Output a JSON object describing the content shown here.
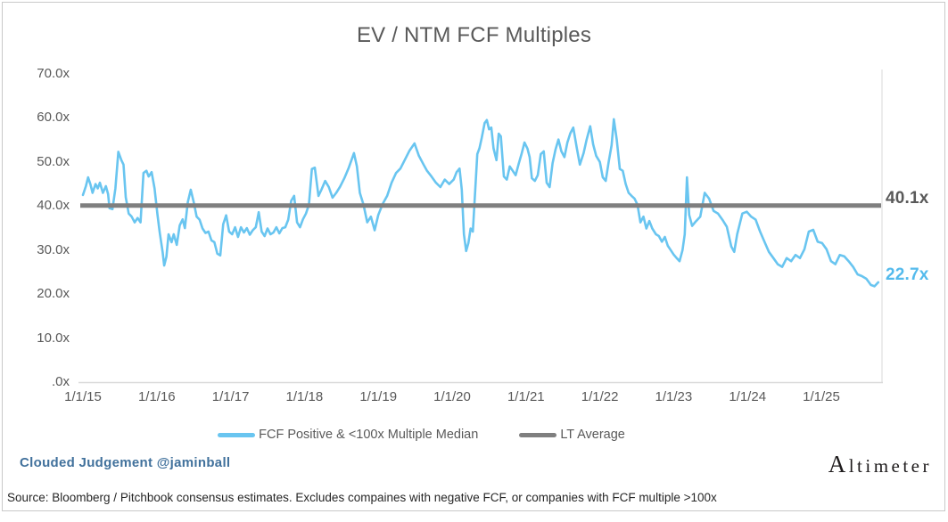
{
  "card": {
    "brand_line": "Clouded Judgement @jaminball",
    "logo_text": "Altimeter",
    "source_note": "Source: Bloomberg / Pitchbook consensus estimates. Excludes compaines with negative FCF, or companies with FCF multiple >100x"
  },
  "chart_data": {
    "type": "line",
    "title": "EV / NTM FCF Multiples",
    "grid": "off",
    "legend_position": "bottom",
    "ylim": [
      0,
      70
    ],
    "x_domain_years": [
      2015.0,
      2025.83
    ],
    "y_tick_labels": [
      ".0x",
      "10.0x",
      "20.0x",
      "30.0x",
      "40.0x",
      "50.0x",
      "60.0x",
      "70.0x"
    ],
    "x_tick_labels": [
      "1/1/15",
      "1/1/16",
      "1/1/17",
      "1/1/18",
      "1/1/19",
      "1/1/20",
      "1/1/21",
      "1/1/22",
      "1/1/23",
      "1/1/24",
      "1/1/25"
    ],
    "series": [
      {
        "name": "FCF Positive & <100x Multiple Median",
        "type": "line",
        "color": "#69c5f0",
        "points": [
          [
            2015.0,
            42.5
          ],
          [
            2015.04,
            44.5
          ],
          [
            2015.07,
            46.5
          ],
          [
            2015.1,
            45.0
          ],
          [
            2015.13,
            43.0
          ],
          [
            2015.17,
            45.0
          ],
          [
            2015.2,
            44.0
          ],
          [
            2015.23,
            45.3
          ],
          [
            2015.27,
            43.0
          ],
          [
            2015.31,
            44.5
          ],
          [
            2015.34,
            42.7
          ],
          [
            2015.36,
            39.5
          ],
          [
            2015.4,
            39.3
          ],
          [
            2015.44,
            44.0
          ],
          [
            2015.48,
            52.3
          ],
          [
            2015.52,
            50.4
          ],
          [
            2015.55,
            49.4
          ],
          [
            2015.58,
            42.0
          ],
          [
            2015.62,
            38.3
          ],
          [
            2015.66,
            37.6
          ],
          [
            2015.7,
            36.3
          ],
          [
            2015.74,
            37.3
          ],
          [
            2015.78,
            36.3
          ],
          [
            2015.82,
            47.5
          ],
          [
            2015.86,
            48.0
          ],
          [
            2015.89,
            46.7
          ],
          [
            2015.93,
            47.7
          ],
          [
            2015.97,
            44.0
          ],
          [
            2016.01,
            38.0
          ],
          [
            2016.04,
            34.0
          ],
          [
            2016.08,
            29.5
          ],
          [
            2016.1,
            26.5
          ],
          [
            2016.13,
            28.5
          ],
          [
            2016.16,
            33.6
          ],
          [
            2016.2,
            31.8
          ],
          [
            2016.23,
            33.6
          ],
          [
            2016.27,
            31.2
          ],
          [
            2016.31,
            35.6
          ],
          [
            2016.35,
            37.0
          ],
          [
            2016.38,
            35.0
          ],
          [
            2016.42,
            40.9
          ],
          [
            2016.46,
            43.7
          ],
          [
            2016.5,
            40.9
          ],
          [
            2016.54,
            37.6
          ],
          [
            2016.58,
            36.9
          ],
          [
            2016.62,
            34.9
          ],
          [
            2016.66,
            33.9
          ],
          [
            2016.7,
            34.2
          ],
          [
            2016.74,
            32.2
          ],
          [
            2016.78,
            31.8
          ],
          [
            2016.82,
            29.2
          ],
          [
            2016.86,
            28.8
          ],
          [
            2016.9,
            35.9
          ],
          [
            2016.94,
            37.9
          ],
          [
            2016.98,
            34.2
          ],
          [
            2017.02,
            33.6
          ],
          [
            2017.06,
            35.2
          ],
          [
            2017.1,
            33.0
          ],
          [
            2017.14,
            35.2
          ],
          [
            2017.18,
            34.0
          ],
          [
            2017.22,
            35.0
          ],
          [
            2017.26,
            33.5
          ],
          [
            2017.3,
            34.5
          ],
          [
            2017.34,
            35.2
          ],
          [
            2017.38,
            38.6
          ],
          [
            2017.42,
            34.2
          ],
          [
            2017.46,
            33.2
          ],
          [
            2017.5,
            34.9
          ],
          [
            2017.54,
            33.6
          ],
          [
            2017.58,
            34.0
          ],
          [
            2017.62,
            35.2
          ],
          [
            2017.66,
            33.8
          ],
          [
            2017.7,
            35.0
          ],
          [
            2017.74,
            35.2
          ],
          [
            2017.78,
            36.9
          ],
          [
            2017.82,
            41.2
          ],
          [
            2017.86,
            42.3
          ],
          [
            2017.9,
            36.3
          ],
          [
            2017.94,
            35.2
          ],
          [
            2017.98,
            37.0
          ],
          [
            2018.02,
            38.3
          ],
          [
            2018.06,
            40.3
          ],
          [
            2018.1,
            48.4
          ],
          [
            2018.14,
            48.7
          ],
          [
            2018.19,
            42.3
          ],
          [
            2018.23,
            43.7
          ],
          [
            2018.28,
            45.7
          ],
          [
            2018.33,
            44.3
          ],
          [
            2018.38,
            41.9
          ],
          [
            2018.43,
            43.0
          ],
          [
            2018.48,
            44.3
          ],
          [
            2018.54,
            46.3
          ],
          [
            2018.6,
            48.7
          ],
          [
            2018.67,
            52.0
          ],
          [
            2018.71,
            49.0
          ],
          [
            2018.75,
            43.0
          ],
          [
            2018.8,
            40.3
          ],
          [
            2018.85,
            36.3
          ],
          [
            2018.9,
            37.6
          ],
          [
            2018.95,
            34.5
          ],
          [
            2019.0,
            38.0
          ],
          [
            2019.06,
            40.5
          ],
          [
            2019.12,
            42.3
          ],
          [
            2019.18,
            45.3
          ],
          [
            2019.24,
            47.5
          ],
          [
            2019.3,
            48.5
          ],
          [
            2019.36,
            50.5
          ],
          [
            2019.42,
            52.5
          ],
          [
            2019.49,
            54.2
          ],
          [
            2019.55,
            51.4
          ],
          [
            2019.61,
            49.5
          ],
          [
            2019.66,
            48.0
          ],
          [
            2019.72,
            46.7
          ],
          [
            2019.78,
            45.3
          ],
          [
            2019.84,
            44.3
          ],
          [
            2019.9,
            46.0
          ],
          [
            2019.96,
            45.0
          ],
          [
            2020.02,
            46.0
          ],
          [
            2020.06,
            47.7
          ],
          [
            2020.1,
            48.5
          ],
          [
            2020.13,
            43.7
          ],
          [
            2020.16,
            33.6
          ],
          [
            2020.19,
            29.8
          ],
          [
            2020.22,
            31.6
          ],
          [
            2020.25,
            34.9
          ],
          [
            2020.28,
            34.2
          ],
          [
            2020.31,
            43.0
          ],
          [
            2020.34,
            51.8
          ],
          [
            2020.37,
            53.1
          ],
          [
            2020.4,
            55.4
          ],
          [
            2020.44,
            58.8
          ],
          [
            2020.47,
            59.5
          ],
          [
            2020.5,
            57.4
          ],
          [
            2020.53,
            57.8
          ],
          [
            2020.56,
            53.1
          ],
          [
            2020.6,
            50.4
          ],
          [
            2020.63,
            56.4
          ],
          [
            2020.66,
            55.8
          ],
          [
            2020.7,
            46.7
          ],
          [
            2020.74,
            46.0
          ],
          [
            2020.78,
            49.0
          ],
          [
            2020.82,
            48.0
          ],
          [
            2020.86,
            47.0
          ],
          [
            2020.9,
            49.5
          ],
          [
            2020.94,
            51.8
          ],
          [
            2020.98,
            54.4
          ],
          [
            2021.02,
            53.0
          ],
          [
            2021.05,
            51.1
          ],
          [
            2021.08,
            46.3
          ],
          [
            2021.12,
            45.7
          ],
          [
            2021.16,
            47.0
          ],
          [
            2021.2,
            51.8
          ],
          [
            2021.24,
            52.4
          ],
          [
            2021.28,
            45.3
          ],
          [
            2021.32,
            44.3
          ],
          [
            2021.36,
            49.7
          ],
          [
            2021.4,
            52.8
          ],
          [
            2021.44,
            55.1
          ],
          [
            2021.48,
            52.4
          ],
          [
            2021.52,
            51.1
          ],
          [
            2021.56,
            54.4
          ],
          [
            2021.6,
            56.5
          ],
          [
            2021.64,
            57.8
          ],
          [
            2021.69,
            53.0
          ],
          [
            2021.73,
            49.4
          ],
          [
            2021.78,
            52.0
          ],
          [
            2021.82,
            55.0
          ],
          [
            2021.87,
            58.1
          ],
          [
            2021.91,
            54.0
          ],
          [
            2021.95,
            51.4
          ],
          [
            2022.0,
            50.0
          ],
          [
            2022.04,
            46.5
          ],
          [
            2022.08,
            45.7
          ],
          [
            2022.12,
            50.0
          ],
          [
            2022.16,
            53.8
          ],
          [
            2022.19,
            59.7
          ],
          [
            2022.23,
            55.0
          ],
          [
            2022.27,
            48.4
          ],
          [
            2022.31,
            48.0
          ],
          [
            2022.35,
            45.0
          ],
          [
            2022.39,
            43.0
          ],
          [
            2022.43,
            42.3
          ],
          [
            2022.47,
            41.7
          ],
          [
            2022.51,
            40.3
          ],
          [
            2022.55,
            36.3
          ],
          [
            2022.59,
            37.6
          ],
          [
            2022.63,
            34.9
          ],
          [
            2022.67,
            36.6
          ],
          [
            2022.71,
            34.9
          ],
          [
            2022.76,
            33.6
          ],
          [
            2022.8,
            33.2
          ],
          [
            2022.84,
            31.9
          ],
          [
            2022.88,
            33.0
          ],
          [
            2022.92,
            31.0
          ],
          [
            2022.96,
            30.0
          ],
          [
            2023.0,
            29.0
          ],
          [
            2023.04,
            28.2
          ],
          [
            2023.08,
            27.5
          ],
          [
            2023.12,
            30.0
          ],
          [
            2023.15,
            33.6
          ],
          [
            2023.18,
            46.5
          ],
          [
            2023.21,
            38.0
          ],
          [
            2023.25,
            35.5
          ],
          [
            2023.3,
            36.5
          ],
          [
            2023.36,
            37.6
          ],
          [
            2023.42,
            43.0
          ],
          [
            2023.48,
            41.7
          ],
          [
            2023.54,
            38.9
          ],
          [
            2023.6,
            38.3
          ],
          [
            2023.66,
            36.9
          ],
          [
            2023.72,
            35.3
          ],
          [
            2023.78,
            30.8
          ],
          [
            2023.82,
            29.6
          ],
          [
            2023.86,
            33.6
          ],
          [
            2023.93,
            38.3
          ],
          [
            2023.99,
            38.7
          ],
          [
            2024.05,
            37.6
          ],
          [
            2024.11,
            36.9
          ],
          [
            2024.17,
            34.2
          ],
          [
            2024.23,
            31.9
          ],
          [
            2024.29,
            29.6
          ],
          [
            2024.35,
            28.2
          ],
          [
            2024.41,
            26.8
          ],
          [
            2024.47,
            26.2
          ],
          [
            2024.53,
            28.2
          ],
          [
            2024.59,
            27.5
          ],
          [
            2024.65,
            28.9
          ],
          [
            2024.71,
            28.2
          ],
          [
            2024.77,
            30.2
          ],
          [
            2024.83,
            34.2
          ],
          [
            2024.89,
            34.6
          ],
          [
            2024.95,
            31.9
          ],
          [
            2025.01,
            31.6
          ],
          [
            2025.07,
            30.2
          ],
          [
            2025.13,
            27.5
          ],
          [
            2025.19,
            26.8
          ],
          [
            2025.25,
            28.9
          ],
          [
            2025.31,
            28.6
          ],
          [
            2025.37,
            27.5
          ],
          [
            2025.43,
            26.2
          ],
          [
            2025.49,
            24.5
          ],
          [
            2025.55,
            24.1
          ],
          [
            2025.61,
            23.5
          ],
          [
            2025.67,
            22.1
          ],
          [
            2025.72,
            21.8
          ],
          [
            2025.77,
            22.7
          ]
        ]
      },
      {
        "name": "LT Average",
        "type": "hline",
        "color": "#7f7f7f",
        "value": 40.1
      }
    ],
    "end_labels": [
      {
        "text": "40.1x",
        "value": 40.1,
        "color": "#595959"
      },
      {
        "text": "22.7x",
        "value": 22.7,
        "color": "#53baec"
      }
    ]
  },
  "colors": {
    "line_blue": "#69c5f0",
    "line_gray": "#7f7f7f",
    "axis_text": "#595959",
    "axis_line": "#d9d9d9",
    "brand_blue": "#41719c",
    "border_gray": "#c9c9c9"
  }
}
